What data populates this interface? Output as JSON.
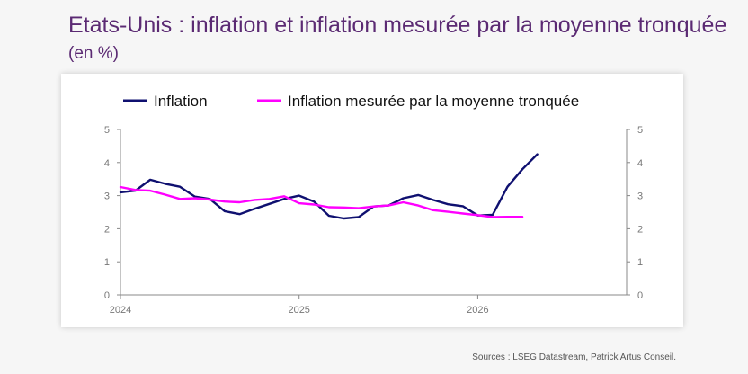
{
  "header": {
    "title_main": "Etats-Unis : inflation et inflation mesurée par la moyenne tronquée",
    "title_unit": "(en %)"
  },
  "footer": {
    "source": "Sources : LSEG Datastream, Patrick Artus Conseil."
  },
  "colors": {
    "inflation": "#0f1070",
    "trimmed_mean": "#ff00ff",
    "axis": "#888888",
    "tick_text": "#777777"
  },
  "chart_data": {
    "type": "line",
    "title": "",
    "xlabel": "",
    "ylabel": "",
    "ylim": [
      0,
      5
    ],
    "yticks": [
      0,
      1,
      2,
      3,
      4,
      5
    ],
    "y2ticks": [
      0,
      1,
      2,
      3,
      4,
      5
    ],
    "x_tick_labels": [
      "2024",
      "2025",
      "2026"
    ],
    "x_range": [
      "2024-01",
      "2026-11"
    ],
    "legend_position": "top",
    "grid": false,
    "series": [
      {
        "name": "Inflation",
        "x": [
          "2024-01",
          "2024-02",
          "2024-03",
          "2024-04",
          "2024-05",
          "2024-06",
          "2024-07",
          "2024-08",
          "2024-09",
          "2024-10",
          "2024-11",
          "2024-12",
          "2025-01",
          "2025-02",
          "2025-03",
          "2025-04",
          "2025-05",
          "2025-06",
          "2025-07",
          "2025-08",
          "2025-09",
          "2025-10",
          "2025-11",
          "2025-12",
          "2026-01",
          "2026-02",
          "2026-03",
          "2026-04",
          "2026-05"
        ],
        "values": [
          3.1,
          3.15,
          3.48,
          3.36,
          3.27,
          2.97,
          2.9,
          2.53,
          2.44,
          2.6,
          2.75,
          2.9,
          3.0,
          2.82,
          2.39,
          2.31,
          2.35,
          2.67,
          2.7,
          2.92,
          3.02,
          2.87,
          2.74,
          2.68,
          2.4,
          2.42,
          3.27,
          3.8,
          4.25
        ]
      },
      {
        "name": "Inflation mesurée par la moyenne tronquée",
        "x": [
          "2024-01",
          "2024-02",
          "2024-03",
          "2024-04",
          "2024-05",
          "2024-06",
          "2024-07",
          "2024-08",
          "2024-09",
          "2024-10",
          "2024-11",
          "2024-12",
          "2025-01",
          "2025-02",
          "2025-03",
          "2025-04",
          "2025-05",
          "2025-06",
          "2025-07",
          "2025-08",
          "2025-09",
          "2025-10",
          "2025-11",
          "2025-12",
          "2026-01",
          "2026-02",
          "2026-03",
          "2026-04"
        ],
        "values": [
          3.26,
          3.17,
          3.15,
          3.03,
          2.9,
          2.92,
          2.88,
          2.82,
          2.8,
          2.87,
          2.9,
          2.98,
          2.77,
          2.73,
          2.65,
          2.64,
          2.62,
          2.67,
          2.7,
          2.8,
          2.7,
          2.56,
          2.51,
          2.46,
          2.41,
          2.35,
          2.36,
          2.36
        ]
      }
    ]
  }
}
